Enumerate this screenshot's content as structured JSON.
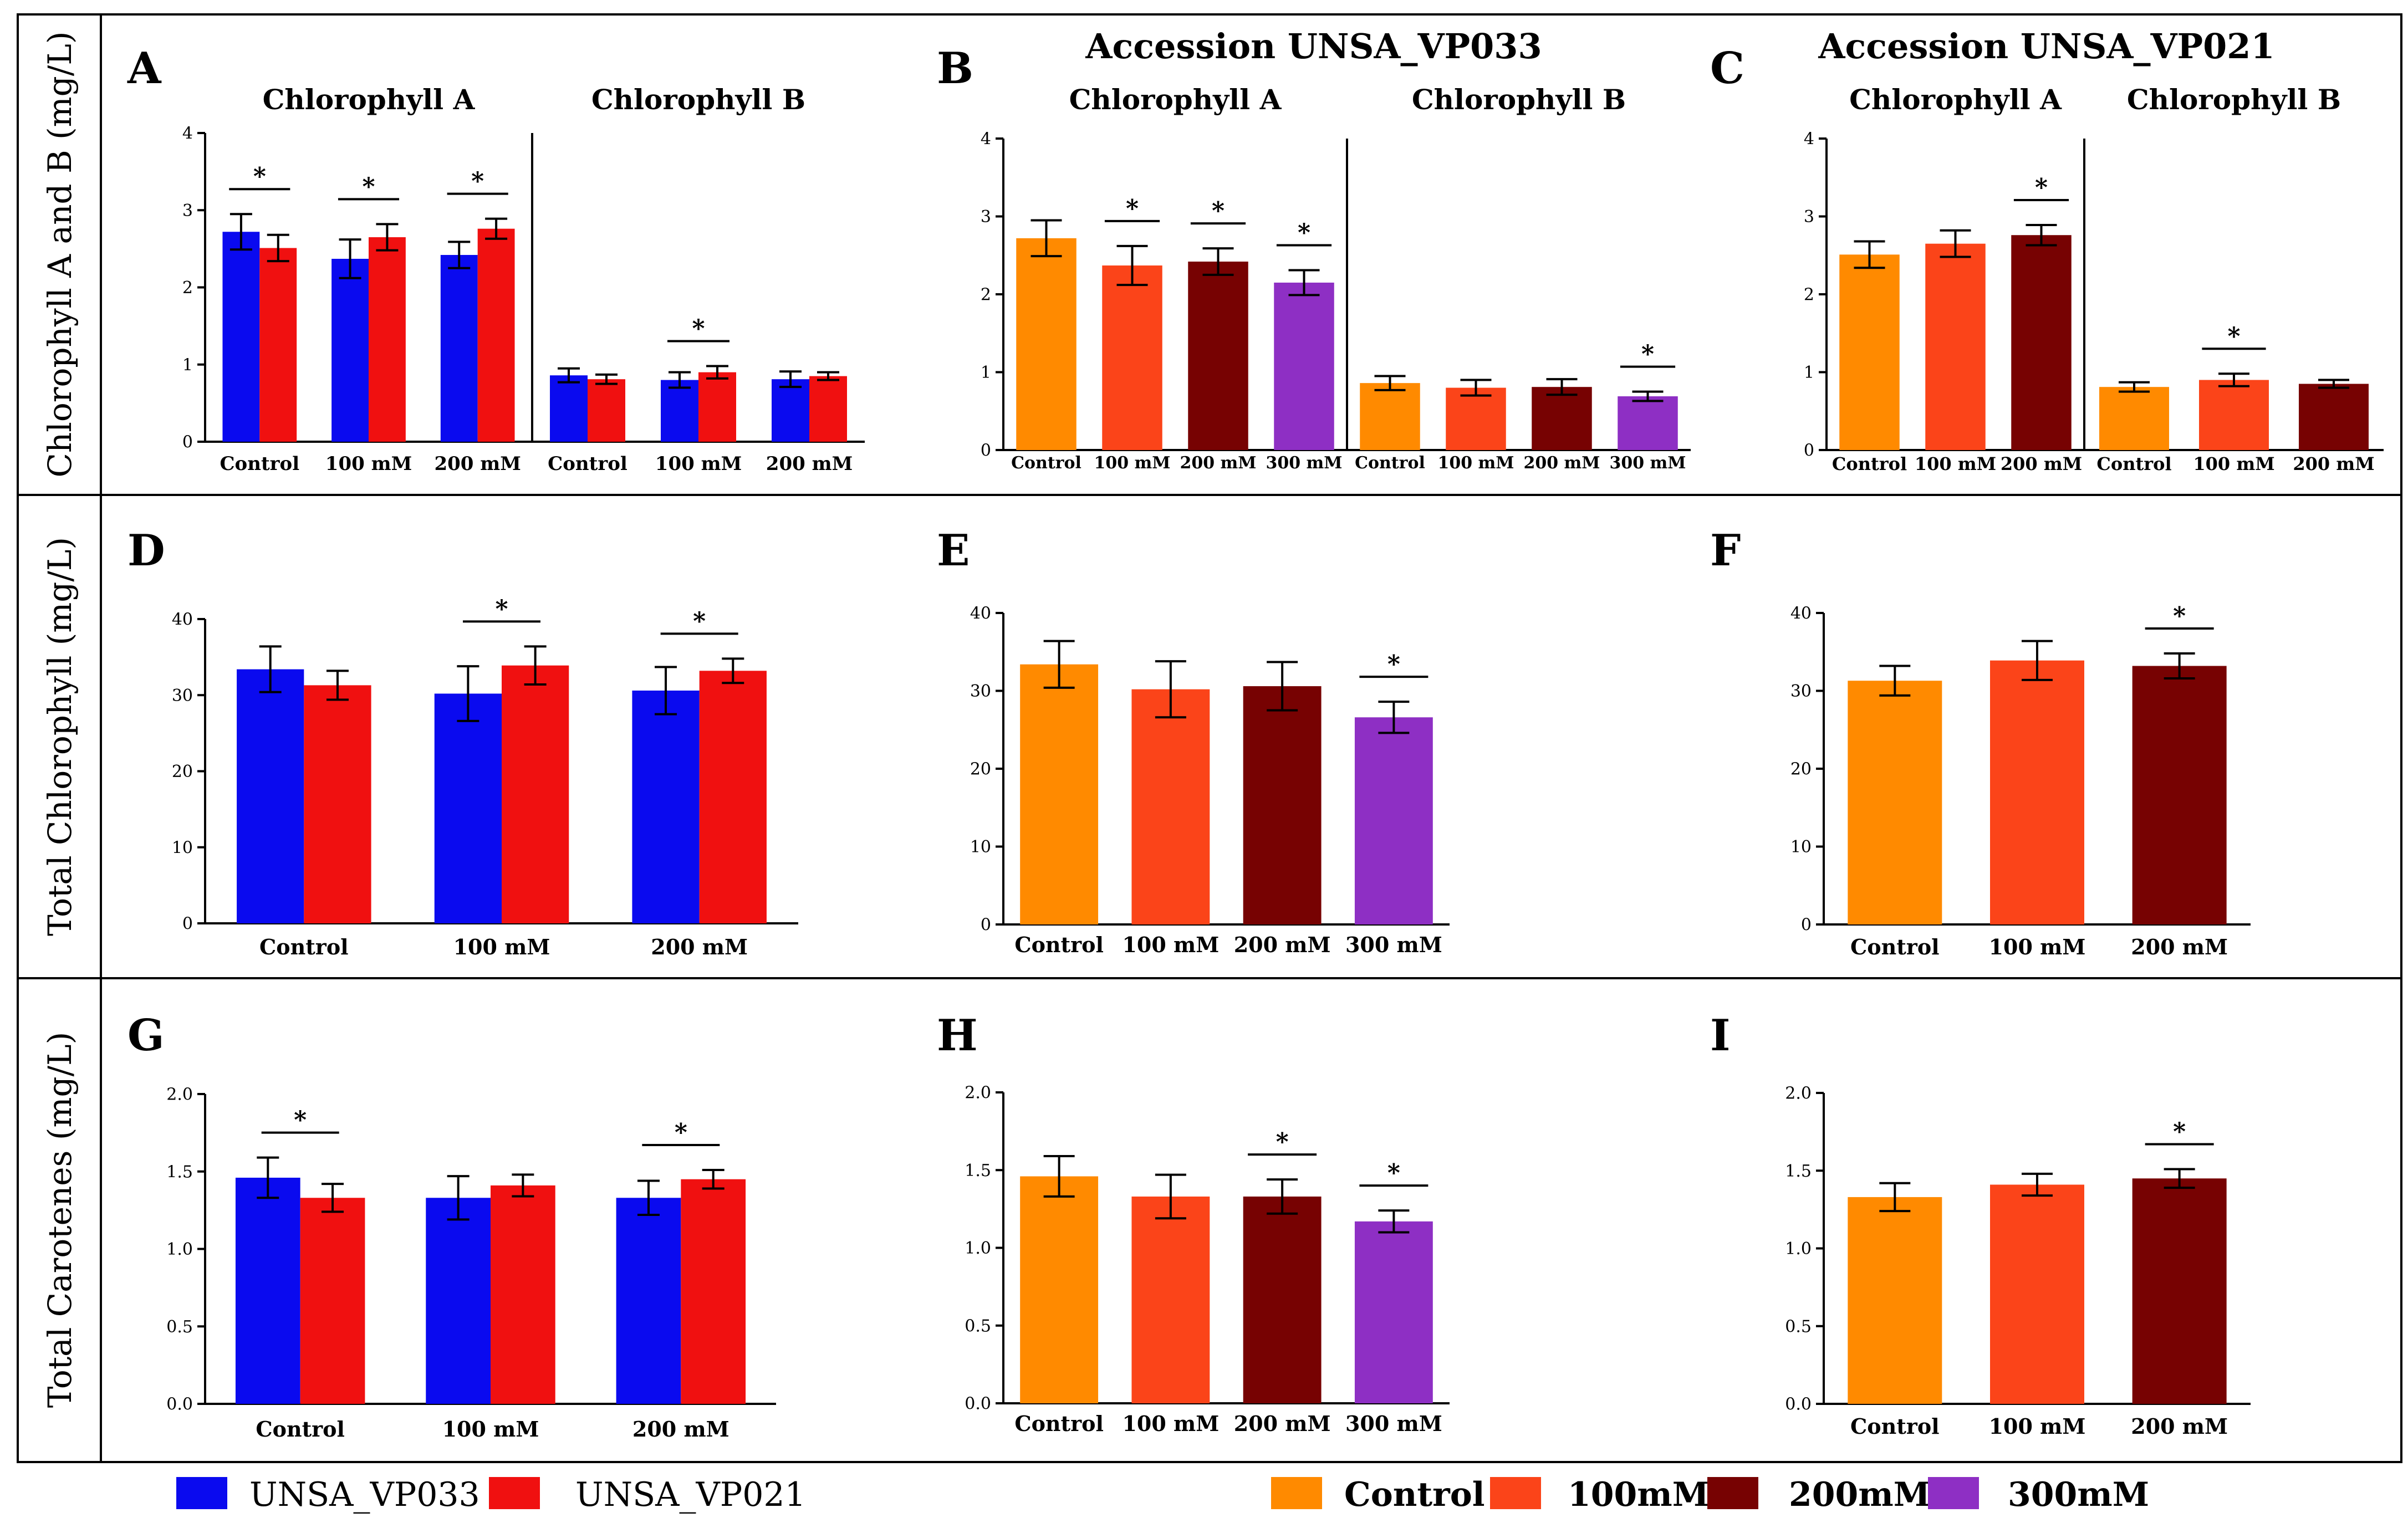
{
  "accession_headers": {
    "vp033": "Accession UNSA_VP033",
    "vp021": "Accession UNSA_VP021"
  },
  "row_labels": [
    "Chlorophyll A and B (mg/L)",
    "Total Chlorophyll (mg/L)",
    "Total Carotenes (mg/L)"
  ],
  "legend_left": [
    {
      "label": "UNSA_VP033",
      "color": "#0a0aef"
    },
    {
      "label": "UNSA_VP021",
      "color": "#f01010"
    }
  ],
  "legend_right": [
    {
      "label": "Control",
      "color": "#ff8a00"
    },
    {
      "label": "100mM",
      "color": "#fb4419"
    },
    {
      "label": "200mM",
      "color": "#770202"
    },
    {
      "label": "300mM",
      "color": "#8e2fc4"
    }
  ],
  "chart_data": [
    {
      "id": "A",
      "type": "bar",
      "letter": "A",
      "ylim": [
        0,
        4
      ],
      "yticks": [
        "0",
        "1",
        "2",
        "3",
        "4"
      ],
      "groups": [
        {
          "title": "Chlorophyll A",
          "categories": [
            "Control",
            "100 mM",
            "200 mM"
          ],
          "series": [
            {
              "name": "UNSA_VP033",
              "color": "#0a0aef",
              "values": [
                2.72,
                2.37,
                2.42
              ],
              "errors": [
                0.23,
                0.25,
                0.17
              ]
            },
            {
              "name": "UNSA_VP021",
              "color": "#f01010",
              "values": [
                2.51,
                2.65,
                2.76
              ],
              "errors": [
                0.17,
                0.17,
                0.13
              ]
            }
          ],
          "significance": [
            "*",
            "*",
            "*"
          ]
        },
        {
          "title": "Chlorophyll B",
          "categories": [
            "Control",
            "100 mM",
            "200 mM"
          ],
          "series": [
            {
              "name": "UNSA_VP033",
              "color": "#0a0aef",
              "values": [
                0.86,
                0.8,
                0.81
              ],
              "errors": [
                0.09,
                0.1,
                0.1
              ]
            },
            {
              "name": "UNSA_VP021",
              "color": "#f01010",
              "values": [
                0.81,
                0.9,
                0.85
              ],
              "errors": [
                0.06,
                0.08,
                0.05
              ]
            }
          ],
          "significance": [
            "",
            "*",
            ""
          ]
        }
      ]
    },
    {
      "id": "B",
      "type": "bar",
      "letter": "B",
      "ylim": [
        0,
        4
      ],
      "yticks": [
        "0",
        "1",
        "2",
        "3",
        "4"
      ],
      "groups": [
        {
          "title": "Chlorophyll A",
          "categories": [
            "Control",
            "100 mM",
            "200 mM",
            "300 mM"
          ],
          "bars": [
            {
              "value": 2.72,
              "error": 0.23,
              "color": "#ff8a00"
            },
            {
              "value": 2.37,
              "error": 0.25,
              "color": "#fb4419"
            },
            {
              "value": 2.42,
              "error": 0.17,
              "color": "#770202"
            },
            {
              "value": 2.15,
              "error": 0.16,
              "color": "#8e2fc4"
            }
          ],
          "significance": [
            "",
            "*",
            "*",
            "*"
          ]
        },
        {
          "title": "Chlorophyll B",
          "categories": [
            "Control",
            "100 mM",
            "200 mM",
            "300 mM"
          ],
          "bars": [
            {
              "value": 0.86,
              "error": 0.09,
              "color": "#ff8a00"
            },
            {
              "value": 0.8,
              "error": 0.1,
              "color": "#fb4419"
            },
            {
              "value": 0.81,
              "error": 0.1,
              "color": "#770202"
            },
            {
              "value": 0.69,
              "error": 0.06,
              "color": "#8e2fc4"
            }
          ],
          "significance": [
            "",
            "",
            "",
            "*"
          ]
        }
      ]
    },
    {
      "id": "C",
      "type": "bar",
      "letter": "C",
      "ylim": [
        0,
        4
      ],
      "yticks": [
        "0",
        "1",
        "2",
        "3",
        "4"
      ],
      "groups": [
        {
          "title": "Chlorophyll A",
          "categories": [
            "Control",
            "100 mM",
            "200 mM"
          ],
          "bars": [
            {
              "value": 2.51,
              "error": 0.17,
              "color": "#ff8a00"
            },
            {
              "value": 2.65,
              "error": 0.17,
              "color": "#fb4419"
            },
            {
              "value": 2.76,
              "error": 0.13,
              "color": "#770202"
            }
          ],
          "significance": [
            "",
            "",
            "*"
          ]
        },
        {
          "title": "Chlorophyll B",
          "categories": [
            "Control",
            "100 mM",
            "200 mM"
          ],
          "bars": [
            {
              "value": 0.81,
              "error": 0.06,
              "color": "#ff8a00"
            },
            {
              "value": 0.9,
              "error": 0.08,
              "color": "#fb4419"
            },
            {
              "value": 0.85,
              "error": 0.05,
              "color": "#770202"
            }
          ],
          "significance": [
            "",
            "*",
            ""
          ]
        }
      ]
    },
    {
      "id": "D",
      "type": "bar",
      "letter": "D",
      "ylim": [
        0,
        40
      ],
      "yticks": [
        "0",
        "10",
        "20",
        "30",
        "40"
      ],
      "groups": [
        {
          "title": "",
          "categories": [
            "Control",
            "100 mM",
            "200 mM"
          ],
          "series": [
            {
              "name": "UNSA_VP033",
              "color": "#0a0aef",
              "values": [
                33.4,
                30.2,
                30.6
              ],
              "errors": [
                3.0,
                3.6,
                3.1
              ]
            },
            {
              "name": "UNSA_VP021",
              "color": "#f01010",
              "values": [
                31.3,
                33.9,
                33.2
              ],
              "errors": [
                1.9,
                2.5,
                1.6
              ]
            }
          ],
          "significance": [
            "",
            "*",
            "*"
          ]
        }
      ]
    },
    {
      "id": "E",
      "type": "bar",
      "letter": "E",
      "ylim": [
        0,
        40
      ],
      "yticks": [
        "0",
        "10",
        "20",
        "30",
        "40"
      ],
      "groups": [
        {
          "title": "",
          "categories": [
            "Control",
            "100 mM",
            "200 mM",
            "300 mM"
          ],
          "bars": [
            {
              "value": 33.4,
              "error": 3.0,
              "color": "#ff8a00"
            },
            {
              "value": 30.2,
              "error": 3.6,
              "color": "#fb4419"
            },
            {
              "value": 30.6,
              "error": 3.1,
              "color": "#770202"
            },
            {
              "value": 26.6,
              "error": 2.0,
              "color": "#8e2fc4"
            }
          ],
          "significance": [
            "",
            "",
            "",
            "*"
          ]
        }
      ]
    },
    {
      "id": "F",
      "type": "bar",
      "letter": "F",
      "ylim": [
        0,
        40
      ],
      "yticks": [
        "0",
        "10",
        "20",
        "30",
        "40"
      ],
      "groups": [
        {
          "title": "",
          "categories": [
            "Control",
            "100 mM",
            "200 mM"
          ],
          "bars": [
            {
              "value": 31.3,
              "error": 1.9,
              "color": "#ff8a00"
            },
            {
              "value": 33.9,
              "error": 2.5,
              "color": "#fb4419"
            },
            {
              "value": 33.2,
              "error": 1.6,
              "color": "#770202"
            }
          ],
          "significance": [
            "",
            "",
            "*"
          ]
        }
      ]
    },
    {
      "id": "G",
      "type": "bar",
      "letter": "G",
      "ylim": [
        0,
        2
      ],
      "yticks": [
        "0.0",
        "0.5",
        "1.0",
        "1.5",
        "2.0"
      ],
      "groups": [
        {
          "title": "",
          "categories": [
            "Control",
            "100 mM",
            "200 mM"
          ],
          "series": [
            {
              "name": "UNSA_VP033",
              "color": "#0a0aef",
              "values": [
                1.46,
                1.33,
                1.33
              ],
              "errors": [
                0.13,
                0.14,
                0.11
              ]
            },
            {
              "name": "UNSA_VP021",
              "color": "#f01010",
              "values": [
                1.33,
                1.41,
                1.45
              ],
              "errors": [
                0.09,
                0.07,
                0.06
              ]
            }
          ],
          "significance": [
            "*",
            "",
            "*"
          ]
        }
      ]
    },
    {
      "id": "H",
      "type": "bar",
      "letter": "H",
      "ylim": [
        0,
        2
      ],
      "yticks": [
        "0.0",
        "0.5",
        "1.0",
        "1.5",
        "2.0"
      ],
      "groups": [
        {
          "title": "",
          "categories": [
            "Control",
            "100 mM",
            "200 mM",
            "300 mM"
          ],
          "bars": [
            {
              "value": 1.46,
              "error": 0.13,
              "color": "#ff8a00"
            },
            {
              "value": 1.33,
              "error": 0.14,
              "color": "#fb4419"
            },
            {
              "value": 1.33,
              "error": 0.11,
              "color": "#770202"
            },
            {
              "value": 1.17,
              "error": 0.07,
              "color": "#8e2fc4"
            }
          ],
          "significance": [
            "",
            "",
            "*",
            "*"
          ]
        }
      ]
    },
    {
      "id": "I",
      "type": "bar",
      "letter": "I",
      "ylim": [
        0,
        2
      ],
      "yticks": [
        "0.0",
        "0.5",
        "1.0",
        "1.5",
        "2.0"
      ],
      "groups": [
        {
          "title": "",
          "categories": [
            "Control",
            "100 mM",
            "200 mM"
          ],
          "bars": [
            {
              "value": 1.33,
              "error": 0.09,
              "color": "#ff8a00"
            },
            {
              "value": 1.41,
              "error": 0.07,
              "color": "#fb4419"
            },
            {
              "value": 1.45,
              "error": 0.06,
              "color": "#770202"
            }
          ],
          "significance": [
            "",
            "",
            "*"
          ]
        }
      ]
    }
  ]
}
